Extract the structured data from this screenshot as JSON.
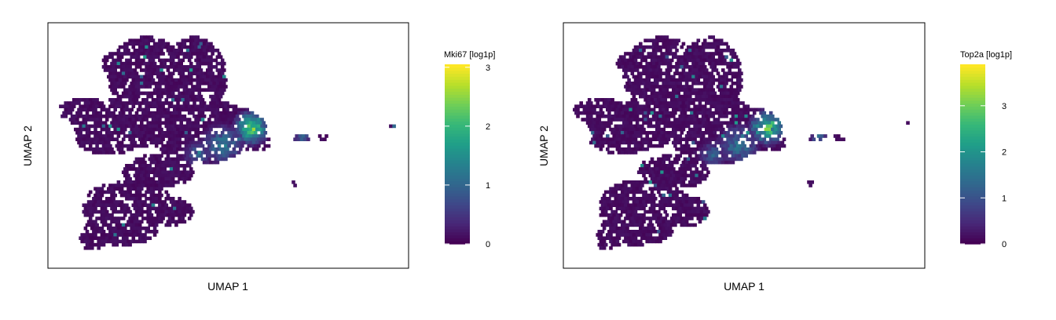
{
  "figure": {
    "background": "#ffffff",
    "colormap": [
      "#440154",
      "#482878",
      "#3e4989",
      "#31688e",
      "#26828e",
      "#1f9e89",
      "#35b779",
      "#6ece58",
      "#b5de2b",
      "#fde725"
    ]
  },
  "chart_data": [
    {
      "type": "heatmap",
      "subtype": "hexbin-embedding",
      "title": "",
      "xlabel": "UMAP 1",
      "ylabel": "UMAP 2",
      "grid": false,
      "axis_ticks": false,
      "colorbar": {
        "title": "Mki67 [log1p]",
        "ticks": [
          0,
          1,
          2,
          3
        ],
        "tick_labels": [
          "0",
          "1",
          "2",
          "3"
        ],
        "range": [
          0,
          3.05
        ],
        "placement": "right"
      },
      "hotspots": [
        {
          "region": "central-right cluster",
          "approx_value": 2.8
        },
        {
          "region": "central band",
          "approx_value": 1.4
        },
        {
          "region": "small right island",
          "approx_value": 1.0
        }
      ]
    },
    {
      "type": "heatmap",
      "subtype": "hexbin-embedding",
      "title": "",
      "xlabel": "UMAP 1",
      "ylabel": "UMAP 2",
      "grid": false,
      "axis_ticks": false,
      "colorbar": {
        "title": "Top2a [log1p]",
        "ticks": [
          0,
          1,
          2,
          3
        ],
        "tick_labels": [
          "0",
          "1",
          "2",
          "3"
        ],
        "range": [
          0,
          3.9
        ],
        "placement": "right"
      },
      "hotspots": [
        {
          "region": "central-right cluster",
          "approx_value": 3.8
        },
        {
          "region": "central band",
          "approx_value": 1.8
        },
        {
          "region": "small right island",
          "approx_value": 1.2
        }
      ]
    }
  ]
}
